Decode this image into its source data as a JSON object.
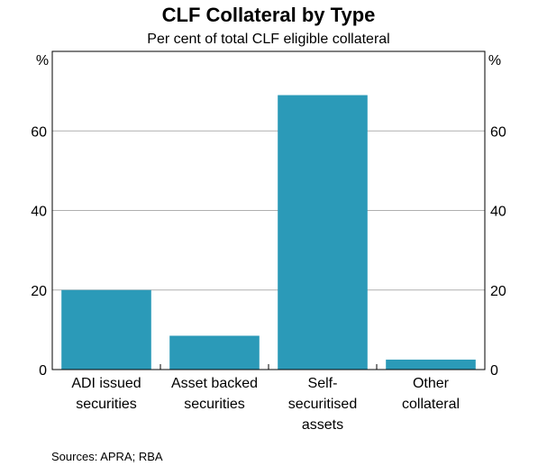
{
  "chart_data": {
    "type": "bar",
    "title": "CLF Collateral by Type",
    "subtitle": "Per cent of total CLF eligible collateral",
    "left_unit": "%",
    "right_unit": "%",
    "categories": [
      [
        "ADI issued",
        "securities"
      ],
      [
        "Asset backed",
        "securities"
      ],
      [
        "Self-",
        "securitised",
        "assets"
      ],
      [
        "Other",
        "collateral"
      ]
    ],
    "values": [
      20,
      8.5,
      69,
      2.5
    ],
    "ylim": [
      0,
      80
    ],
    "yticks": [
      0,
      20,
      40,
      60
    ],
    "grid": true,
    "bar_color": "#2b9ab8",
    "source": "Sources:   APRA; RBA"
  }
}
